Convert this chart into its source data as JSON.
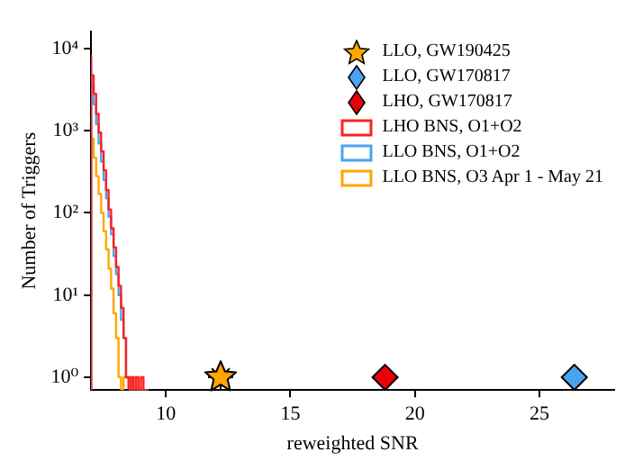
{
  "chart_data": {
    "type": "histogram",
    "xlabel": "reweighted SNR",
    "ylabel": "Number of Triggers",
    "log": "y",
    "grid": false,
    "legend": "top right",
    "xlim": [
      7,
      28
    ],
    "xticks": [
      10,
      15,
      20,
      25
    ],
    "ylim": [
      0.7,
      16000
    ],
    "yticks": [
      {
        "value": 1,
        "label": "10⁰"
      },
      {
        "value": 10,
        "label": "10¹"
      },
      {
        "value": 100,
        "label": "10²"
      },
      {
        "value": 1000,
        "label": "10³"
      },
      {
        "value": 10000,
        "label": "10⁴"
      }
    ],
    "bins": [
      7.0,
      7.1,
      7.2,
      7.3,
      7.4,
      7.5,
      7.6,
      7.7,
      7.8,
      7.9,
      8.0,
      8.1,
      8.2,
      8.3,
      8.4,
      8.5,
      8.6,
      8.7,
      8.8,
      8.9,
      9.0,
      9.1,
      9.2,
      9.3
    ],
    "series": [
      {
        "name": "LLO, GW190425",
        "type": "scatter",
        "marker": "star",
        "color": "#ffa500",
        "x": [
          12.2
        ],
        "values": [
          1
        ]
      },
      {
        "name": "LLO, GW170817",
        "type": "scatter",
        "marker": "diamond",
        "color": "#4ba3f0",
        "x": [
          26.4
        ],
        "values": [
          1
        ]
      },
      {
        "name": "LHO, GW170817",
        "type": "scatter",
        "marker": "diamond",
        "color": "#e8000b",
        "x": [
          18.8
        ],
        "values": [
          1
        ]
      },
      {
        "name": "LHO BNS, O1+O2",
        "color": "#ff2020",
        "values": [
          8000,
          4700,
          2800,
          1600,
          950,
          560,
          330,
          190,
          110,
          65,
          38,
          22,
          13,
          7,
          3,
          1,
          null,
          1,
          null,
          1,
          null,
          1,
          null
        ]
      },
      {
        "name": "LLO BNS, O1+O2",
        "color": "#4ba3f0",
        "values": [
          6000,
          3500,
          2100,
          1200,
          700,
          420,
          250,
          150,
          90,
          55,
          30,
          18,
          10,
          5,
          3,
          1,
          1,
          null,
          null,
          null,
          null,
          null,
          null
        ]
      },
      {
        "name": "LLO BNS, O3 Apr 1 - May 21",
        "color": "#ffa500",
        "values": [
          1300,
          800,
          470,
          280,
          170,
          100,
          60,
          36,
          21,
          12,
          6,
          3,
          1,
          null,
          1,
          1,
          1,
          null,
          1,
          1,
          null,
          null,
          null
        ]
      }
    ]
  }
}
